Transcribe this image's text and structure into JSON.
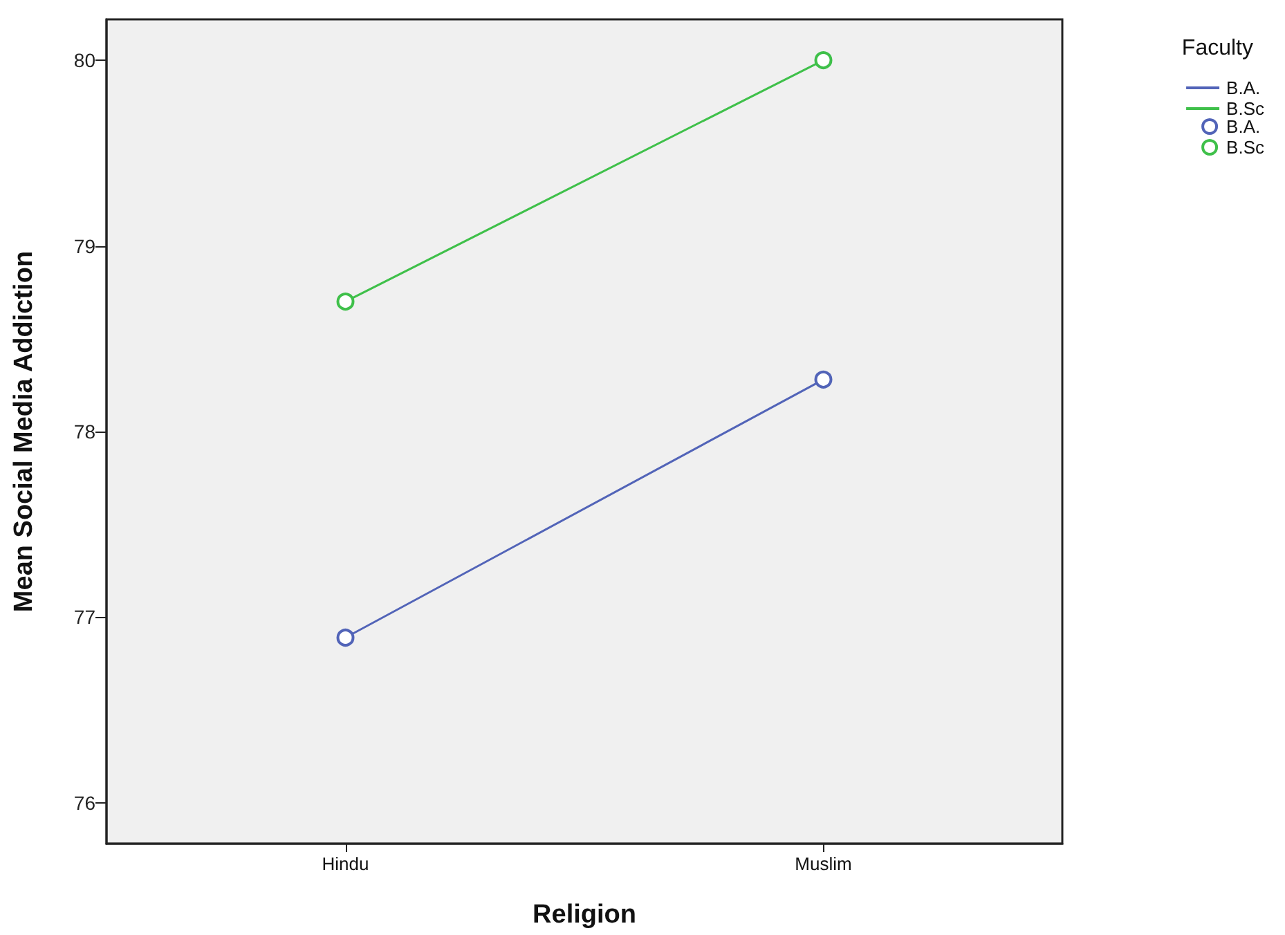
{
  "chart_data": {
    "type": "line",
    "xlabel": "Religion",
    "ylabel": "Mean Social Media Addiction",
    "legend_title": "Faculty",
    "categories": [
      "Hindu",
      "Muslim"
    ],
    "series": [
      {
        "name": "B.A.",
        "color": "#5264b8",
        "values": [
          76.89,
          78.28
        ]
      },
      {
        "name": "B.Sc",
        "color": "#3fc04a",
        "values": [
          78.7,
          80.0
        ]
      }
    ],
    "ylim": [
      75.78,
      80.22
    ],
    "yticks": [
      76,
      77,
      78,
      79,
      80
    ],
    "grid": false,
    "legend": "top right",
    "marker": "circle",
    "line_style": "solid"
  }
}
